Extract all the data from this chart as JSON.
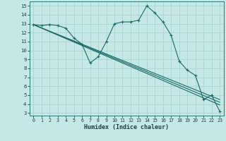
{
  "xlabel": "Humidex (Indice chaleur)",
  "bg_color": "#c5e8e5",
  "grid_color": "#aad4d0",
  "line_color": "#1a6b6b",
  "xlim": [
    -0.5,
    23.5
  ],
  "ylim": [
    2.7,
    15.5
  ],
  "xticks": [
    0,
    1,
    2,
    3,
    4,
    5,
    6,
    7,
    8,
    9,
    10,
    11,
    12,
    13,
    14,
    15,
    16,
    17,
    18,
    19,
    20,
    21,
    22,
    23
  ],
  "yticks": [
    3,
    4,
    5,
    6,
    7,
    8,
    9,
    10,
    11,
    12,
    13,
    14,
    15
  ],
  "line_main_y": [
    12.9,
    12.8,
    12.9,
    12.8,
    12.5,
    11.4,
    10.7,
    8.6,
    9.3,
    11.0,
    13.0,
    13.2,
    13.2,
    13.4,
    15.0,
    14.2,
    13.2,
    11.7,
    8.8,
    7.8,
    7.2,
    4.5,
    5.0,
    3.2
  ],
  "diag1_start": 12.9,
  "diag1_end": 4.2,
  "diag2_start": 12.9,
  "diag2_end": 3.9,
  "diag3_start": 12.9,
  "diag3_end": 4.5
}
